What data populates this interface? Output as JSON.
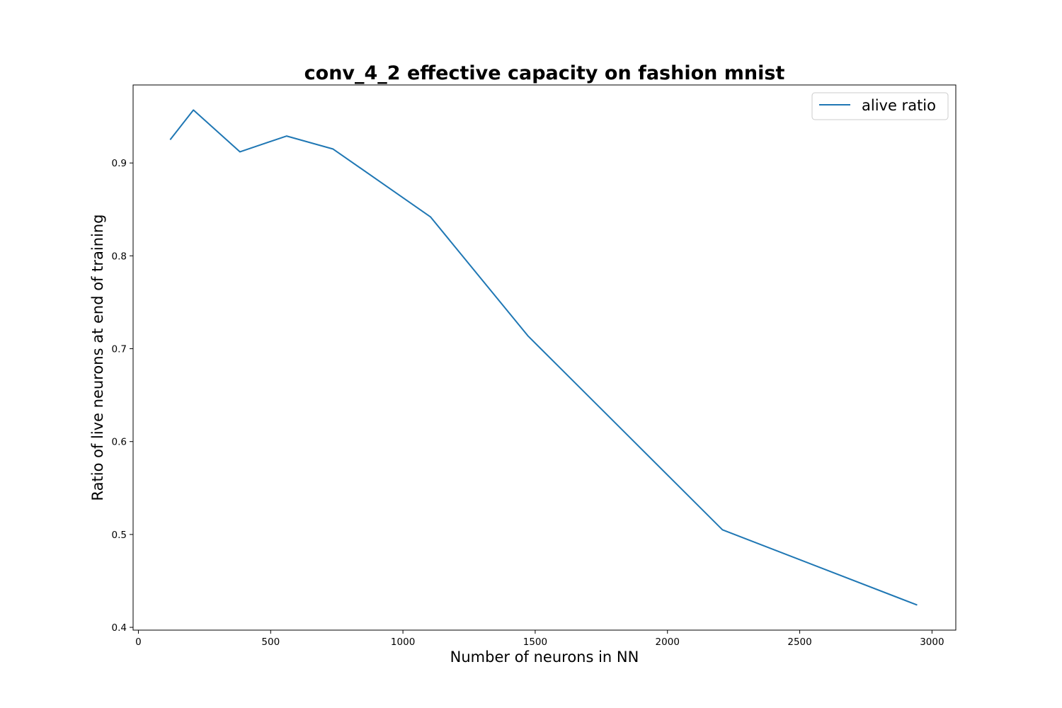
{
  "chart_data": {
    "type": "line",
    "title": "conv_4_2 effective capacity on fashion mnist",
    "xlabel": "Number of neurons in NN",
    "ylabel": "Ratio of live neurons at end of training",
    "xlim": [
      -20,
      3090
    ],
    "ylim": [
      0.397,
      0.984
    ],
    "xticks": [
      0,
      500,
      1000,
      1500,
      2000,
      2500,
      3000
    ],
    "yticks": [
      0.4,
      0.5,
      0.6,
      0.7,
      0.8,
      0.9
    ],
    "xtick_labels": [
      "0",
      "500",
      "1000",
      "1500",
      "2000",
      "2500",
      "3000"
    ],
    "ytick_labels": [
      "0.4",
      "0.5",
      "0.6",
      "0.7",
      "0.8",
      "0.9"
    ],
    "grid": false,
    "legend_position": "top-right",
    "series": [
      {
        "name": "alive ratio",
        "color": "#1f77b4",
        "x": [
          120,
          208,
          384,
          560,
          736,
          1104,
          1472,
          2208,
          2944
        ],
        "y": [
          0.925,
          0.957,
          0.912,
          0.929,
          0.915,
          0.842,
          0.714,
          0.505,
          0.424
        ]
      }
    ]
  }
}
